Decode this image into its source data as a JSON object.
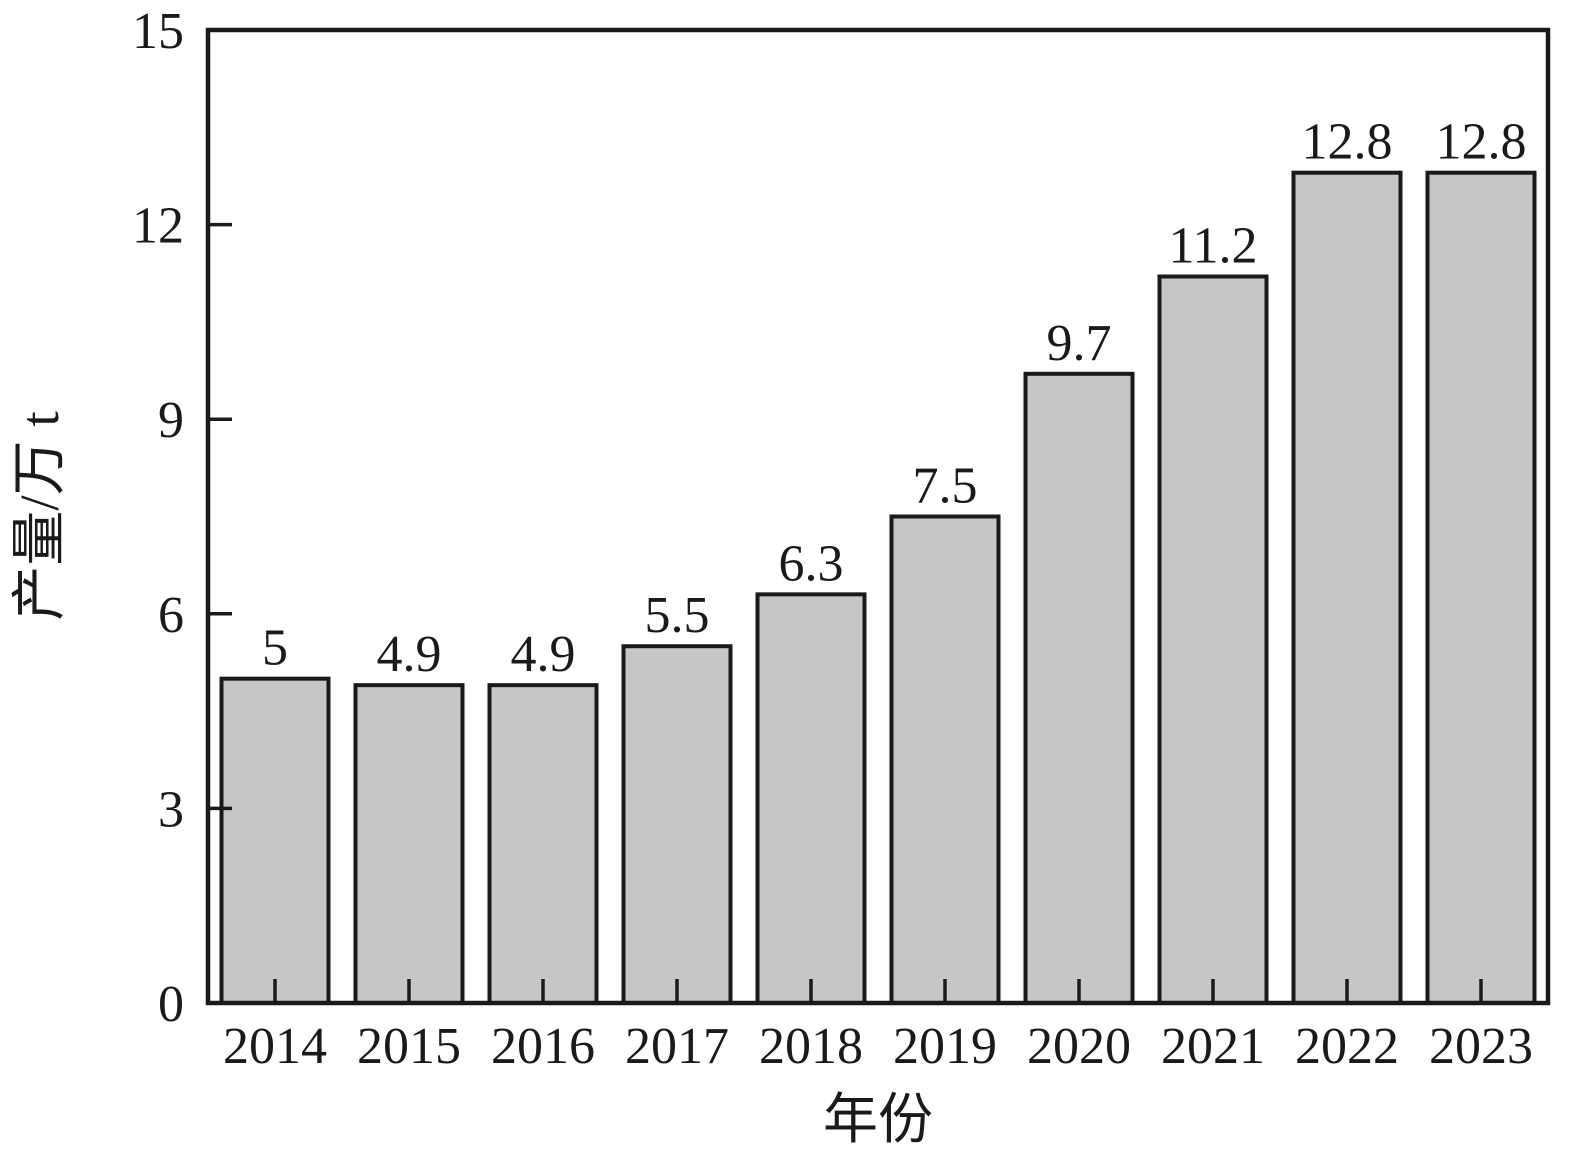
{
  "chart_data": {
    "type": "bar",
    "title": "",
    "categories": [
      "2014",
      "2015",
      "2016",
      "2017",
      "2018",
      "2019",
      "2020",
      "2021",
      "2022",
      "2023"
    ],
    "values": [
      5,
      4.9,
      4.9,
      5.5,
      6.3,
      7.5,
      9.7,
      11.2,
      12.8,
      12.8
    ],
    "value_labels": [
      "5",
      "4.9",
      "4.9",
      "5.5",
      "6.3",
      "7.5",
      "9.7",
      "11.2",
      "12.8",
      "12.8"
    ],
    "xlabel": "年份",
    "ylabel": "产量/万 t",
    "ylim": [
      0,
      15
    ],
    "yticks": [
      0,
      3,
      6,
      9,
      12,
      15
    ],
    "grid": false,
    "legend": "none"
  },
  "colors": {
    "bar_fill": "#c6c6c6",
    "bar_stroke": "#1a1a1a",
    "axis": "#1a1a1a",
    "text": "#1a1a1a",
    "background": "#ffffff"
  }
}
